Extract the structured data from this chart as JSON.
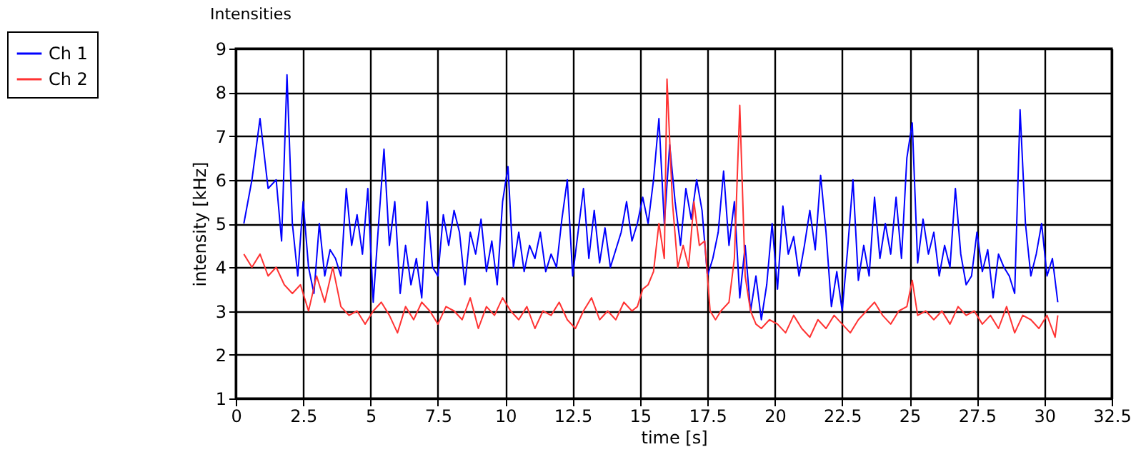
{
  "chart_data": {
    "type": "line",
    "title": "Intensities",
    "xlabel": "time [s]",
    "ylabel": "intensity [kHz]",
    "xlim": [
      0,
      32.5
    ],
    "xticks": [
      0,
      2.5,
      5,
      7.5,
      10,
      12.5,
      15,
      17.5,
      20,
      22.5,
      25,
      27.5,
      30,
      32.5
    ],
    "ylim": [
      1,
      9
    ],
    "yticks": [
      1,
      2,
      3,
      4,
      5,
      6,
      7,
      8,
      9
    ],
    "grid": true,
    "legend": "top left",
    "marker": "none",
    "line_style": "solid",
    "series": [
      {
        "name": "Ch 1",
        "color": "#0000ff",
        "x": [
          0.3,
          0.6,
          0.9,
          1.2,
          1.5,
          1.7,
          1.9,
          2.1,
          2.3,
          2.5,
          2.7,
          2.9,
          3.1,
          3.3,
          3.5,
          3.7,
          3.9,
          4.1,
          4.3,
          4.5,
          4.7,
          4.9,
          5.1,
          5.3,
          5.5,
          5.7,
          5.9,
          6.1,
          6.3,
          6.5,
          6.7,
          6.9,
          7.1,
          7.3,
          7.5,
          7.7,
          7.9,
          8.1,
          8.3,
          8.5,
          8.7,
          8.9,
          9.1,
          9.3,
          9.5,
          9.7,
          9.9,
          10.1,
          10.3,
          10.5,
          10.7,
          10.9,
          11.1,
          11.3,
          11.5,
          11.7,
          11.9,
          12.1,
          12.3,
          12.5,
          12.7,
          12.9,
          13.1,
          13.3,
          13.5,
          13.7,
          13.9,
          14.1,
          14.3,
          14.5,
          14.7,
          14.9,
          15.1,
          15.3,
          15.5,
          15.7,
          15.9,
          16.1,
          16.3,
          16.5,
          16.7,
          16.9,
          17.1,
          17.3,
          17.5,
          17.7,
          17.9,
          18.1,
          18.3,
          18.5,
          18.7,
          18.9,
          19.1,
          19.3,
          19.5,
          19.7,
          19.9,
          20.1,
          20.3,
          20.5,
          20.7,
          20.9,
          21.1,
          21.3,
          21.5,
          21.7,
          21.9,
          22.1,
          22.3,
          22.5,
          22.7,
          22.9,
          23.1,
          23.3,
          23.5,
          23.7,
          23.9,
          24.1,
          24.3,
          24.5,
          24.7,
          24.9,
          25.1,
          25.3,
          25.5,
          25.7,
          25.9,
          26.1,
          26.3,
          26.5,
          26.7,
          26.9,
          27.1,
          27.3,
          27.5,
          27.7,
          27.9,
          28.1,
          28.3,
          28.5,
          28.7,
          28.9,
          29.1,
          29.3,
          29.5,
          29.7,
          29.9,
          30.1,
          30.3,
          30.5
        ],
        "values": [
          5.0,
          6.0,
          7.4,
          5.8,
          6.0,
          4.6,
          8.4,
          5.0,
          3.8,
          5.5,
          4.0,
          3.4,
          5.0,
          3.8,
          4.4,
          4.2,
          3.8,
          5.8,
          4.5,
          5.2,
          4.3,
          5.8,
          3.2,
          5.0,
          6.7,
          4.5,
          5.5,
          3.4,
          4.5,
          3.6,
          4.2,
          3.3,
          5.5,
          4.0,
          3.8,
          5.2,
          4.5,
          5.3,
          4.8,
          3.6,
          4.8,
          4.3,
          5.1,
          3.9,
          4.6,
          3.6,
          5.5,
          6.3,
          4.0,
          4.8,
          3.9,
          4.5,
          4.2,
          4.8,
          3.9,
          4.3,
          4.0,
          5.1,
          6.0,
          3.8,
          4.8,
          5.8,
          4.2,
          5.3,
          4.1,
          4.9,
          4.0,
          4.4,
          4.8,
          5.5,
          4.6,
          5.0,
          5.6,
          5.0,
          6.0,
          7.4,
          5.0,
          6.8,
          5.5,
          4.5,
          5.8,
          5.1,
          6.0,
          5.3,
          3.8,
          4.2,
          4.8,
          6.2,
          4.5,
          5.5,
          3.3,
          4.5,
          3.0,
          3.8,
          2.8,
          3.6,
          5.0,
          3.5,
          5.4,
          4.3,
          4.7,
          3.8,
          4.5,
          5.3,
          4.4,
          6.1,
          4.8,
          3.1,
          3.9,
          3.0,
          4.4,
          6.0,
          3.7,
          4.5,
          3.8,
          5.6,
          4.2,
          5.0,
          4.3,
          5.6,
          4.2,
          6.5,
          7.3,
          4.1,
          5.1,
          4.3,
          4.8,
          3.8,
          4.5,
          4.0,
          5.8,
          4.3,
          3.6,
          3.8,
          4.8,
          3.9,
          4.4,
          3.3,
          4.3,
          4.0,
          3.8,
          3.4,
          7.6,
          5.0,
          3.8,
          4.3,
          5.0,
          3.8,
          4.2,
          3.2
        ]
      },
      {
        "name": "Ch 2",
        "color": "#ff3333",
        "x": [
          0.3,
          0.6,
          0.9,
          1.2,
          1.5,
          1.8,
          2.1,
          2.4,
          2.7,
          3.0,
          3.3,
          3.6,
          3.9,
          4.2,
          4.5,
          4.8,
          5.1,
          5.4,
          5.7,
          6.0,
          6.3,
          6.6,
          6.9,
          7.2,
          7.5,
          7.8,
          8.1,
          8.4,
          8.7,
          9.0,
          9.3,
          9.6,
          9.9,
          10.2,
          10.5,
          10.8,
          11.1,
          11.4,
          11.7,
          12.0,
          12.3,
          12.6,
          12.9,
          13.2,
          13.5,
          13.8,
          14.1,
          14.4,
          14.7,
          14.9,
          15.1,
          15.3,
          15.5,
          15.7,
          15.9,
          16.0,
          16.2,
          16.4,
          16.6,
          16.8,
          17.0,
          17.2,
          17.4,
          17.6,
          17.8,
          18.0,
          18.3,
          18.5,
          18.7,
          18.9,
          19.1,
          19.3,
          19.5,
          19.8,
          20.1,
          20.4,
          20.7,
          21.0,
          21.3,
          21.6,
          21.9,
          22.2,
          22.5,
          22.8,
          23.1,
          23.4,
          23.7,
          24.0,
          24.3,
          24.6,
          24.9,
          25.1,
          25.3,
          25.6,
          25.9,
          26.2,
          26.5,
          26.8,
          27.1,
          27.4,
          27.7,
          28.0,
          28.3,
          28.6,
          28.9,
          29.2,
          29.5,
          29.8,
          30.1,
          30.4,
          30.5
        ],
        "values": [
          4.3,
          4.0,
          4.3,
          3.8,
          4.0,
          3.6,
          3.4,
          3.6,
          3.0,
          3.8,
          3.2,
          4.0,
          3.1,
          2.9,
          3.0,
          2.7,
          3.0,
          3.2,
          2.9,
          2.5,
          3.1,
          2.8,
          3.2,
          3.0,
          2.7,
          3.1,
          3.0,
          2.8,
          3.3,
          2.6,
          3.1,
          2.9,
          3.3,
          3.0,
          2.8,
          3.1,
          2.6,
          3.0,
          2.9,
          3.2,
          2.8,
          2.6,
          3.0,
          3.3,
          2.8,
          3.0,
          2.8,
          3.2,
          3.0,
          3.1,
          3.5,
          3.6,
          3.9,
          5.0,
          4.2,
          8.3,
          5.5,
          4.0,
          4.5,
          4.0,
          5.5,
          4.5,
          4.6,
          3.0,
          2.8,
          3.0,
          3.2,
          4.2,
          7.7,
          3.8,
          3.0,
          2.7,
          2.6,
          2.8,
          2.7,
          2.5,
          2.9,
          2.6,
          2.4,
          2.8,
          2.6,
          2.9,
          2.7,
          2.5,
          2.8,
          3.0,
          3.2,
          2.9,
          2.7,
          3.0,
          3.1,
          3.7,
          2.9,
          3.0,
          2.8,
          3.0,
          2.7,
          3.1,
          2.9,
          3.0,
          2.7,
          2.9,
          2.6,
          3.1,
          2.5,
          2.9,
          2.8,
          2.6,
          2.9,
          2.4,
          2.9
        ]
      }
    ]
  }
}
